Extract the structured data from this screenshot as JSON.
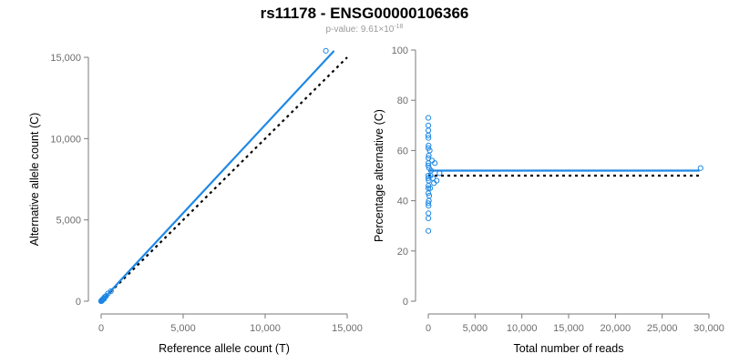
{
  "figure": {
    "title": "rs11178 - ENSG00000106366",
    "subtitle_prefix": "p-value: 9.61×10",
    "subtitle_exponent": "-18"
  },
  "colors": {
    "points": "#1e88e5",
    "reference": "#000000",
    "axes": "#7a7a7a"
  },
  "chart_data": [
    {
      "type": "scatter",
      "xlabel": "Reference allele count (T)",
      "ylabel": "Alternative allele count (C)",
      "xlim": [
        0,
        15000
      ],
      "ylim": [
        0,
        15000
      ],
      "xticks": [
        0,
        5000,
        10000,
        15000
      ],
      "yticks": [
        0,
        5000,
        10000,
        15000
      ],
      "xtick_labels": [
        "0",
        "5,000",
        "10,000",
        "15,000"
      ],
      "ytick_labels": [
        "0",
        "5,000",
        "10,000",
        "15,000"
      ],
      "fit_line": {
        "x": [
          0,
          14200
        ],
        "y": [
          0,
          15400
        ]
      },
      "reference_line": {
        "x": [
          0,
          15000
        ],
        "y": [
          0,
          15000
        ]
      },
      "points": [
        [
          13700,
          15400
        ],
        [
          600,
          620
        ],
        [
          420,
          480
        ],
        [
          300,
          320
        ],
        [
          250,
          290
        ],
        [
          200,
          240
        ],
        [
          180,
          150
        ],
        [
          150,
          170
        ],
        [
          120,
          140
        ],
        [
          100,
          110
        ],
        [
          90,
          80
        ],
        [
          70,
          90
        ],
        [
          60,
          70
        ],
        [
          50,
          55
        ],
        [
          40,
          50
        ],
        [
          35,
          30
        ],
        [
          30,
          35
        ],
        [
          25,
          28
        ],
        [
          20,
          22
        ],
        [
          15,
          18
        ],
        [
          12,
          10
        ],
        [
          10,
          12
        ],
        [
          8,
          9
        ],
        [
          6,
          7
        ],
        [
          5,
          5
        ],
        [
          3,
          4
        ]
      ]
    },
    {
      "type": "scatter",
      "xlabel": "Total number of reads",
      "ylabel": "Percentage alternative (C)",
      "xlim": [
        0,
        30000
      ],
      "ylim": [
        0,
        100
      ],
      "xticks": [
        0,
        5000,
        10000,
        15000,
        20000,
        25000,
        30000
      ],
      "yticks": [
        0,
        20,
        40,
        60,
        80,
        100
      ],
      "xtick_labels": [
        "0",
        "5,000",
        "10,000",
        "15,000",
        "20,000",
        "25,000",
        "30,000"
      ],
      "ytick_labels": [
        "0",
        "20",
        "40",
        "60",
        "80",
        "100"
      ],
      "fit_line": {
        "x": [
          0,
          29000
        ],
        "y": [
          52,
          52
        ]
      },
      "reference_line": {
        "x": [
          0,
          29000
        ],
        "y": [
          50,
          50
        ]
      },
      "points": [
        [
          29100,
          53
        ],
        [
          1200,
          51
        ],
        [
          900,
          48
        ],
        [
          700,
          55
        ],
        [
          600,
          47
        ],
        [
          500,
          49
        ],
        [
          400,
          56
        ],
        [
          300,
          52
        ],
        [
          250,
          50
        ],
        [
          200,
          45
        ],
        [
          150,
          60
        ],
        [
          100,
          42
        ],
        [
          80,
          53
        ],
        [
          60,
          40
        ],
        [
          50,
          58
        ],
        [
          40,
          48
        ],
        [
          30,
          62
        ],
        [
          30,
          38
        ],
        [
          20,
          46
        ],
        [
          20,
          55
        ],
        [
          15,
          65
        ],
        [
          15,
          35
        ],
        [
          10,
          57
        ],
        [
          10,
          43
        ],
        [
          8,
          68
        ],
        [
          8,
          33
        ],
        [
          5,
          70
        ],
        [
          5,
          50
        ],
        [
          5,
          28
        ],
        [
          3,
          73
        ],
        [
          3,
          45
        ],
        [
          3,
          54
        ],
        [
          2,
          61
        ],
        [
          2,
          39
        ],
        [
          1,
          66
        ],
        [
          1,
          49
        ]
      ]
    }
  ]
}
